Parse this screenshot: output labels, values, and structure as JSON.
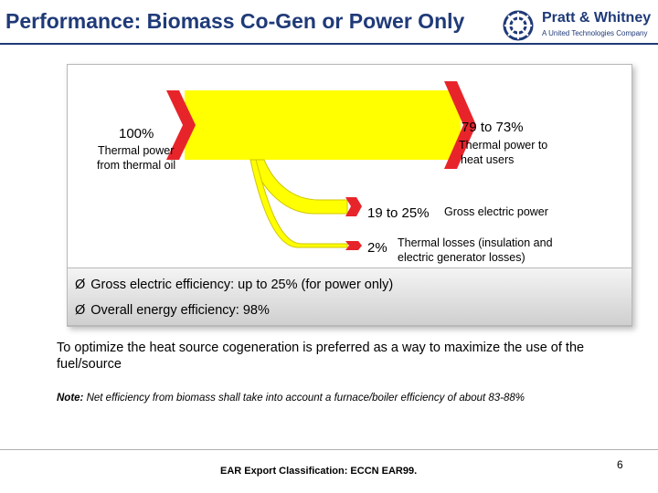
{
  "header": {
    "title": "Performance: Biomass Co-Gen or Power Only",
    "logo_name": "Pratt & Whitney",
    "logo_subtitle": "A United Technologies Company"
  },
  "diagram": {
    "input": {
      "percent": "100%",
      "label_line1": "Thermal power",
      "label_line2": "from thermal oil"
    },
    "heat_output": {
      "percent": "79 to 73%",
      "label_line1": "Thermal power to",
      "label_line2": "heat users"
    },
    "electric_output": {
      "percent": "19 to 25%",
      "label": "Gross electric power"
    },
    "loss_output": {
      "percent": "2%",
      "label_line1": "Thermal losses (insulation and",
      "label_line2": "electric generator losses)"
    },
    "colors": {
      "flow": "#ffff00",
      "arrow": "#e8242b",
      "flow_edge": "#d0c600"
    }
  },
  "bullets": [
    {
      "arrow": "Ø",
      "text": "Gross electric efficiency: up to 25% (for power only)"
    },
    {
      "arrow": "Ø",
      "text": "Overall energy efficiency: 98%"
    }
  ],
  "paragraph": "To optimize the heat source cogeneration is preferred as a way to maximize the use of the fuel/source",
  "note": {
    "label": "Note:",
    "text": "Net efficiency from biomass shall take into account a furnace/boiler efficiency of about 83-88%"
  },
  "footer": {
    "classification": "EAR Export Classification: ECCN EAR99.",
    "page_number": "6"
  }
}
